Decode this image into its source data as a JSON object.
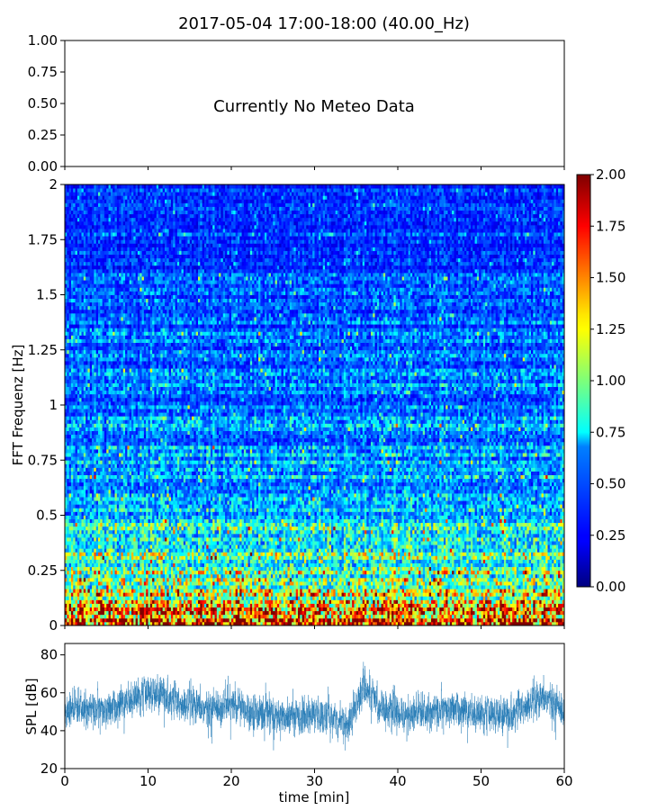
{
  "chart_data": [
    {
      "type": "line",
      "title": "2017-05-04 17:00-18:00 (40.00_Hz)",
      "subplot": "meteo",
      "annotation": "Currently No Meteo Data",
      "ylim": [
        0,
        1
      ],
      "yticks": [
        "0.00",
        "0.25",
        "0.50",
        "0.75",
        "1.00"
      ],
      "series": []
    },
    {
      "type": "heatmap",
      "subplot": "spectrogram",
      "ylabel": "FFT Frequenz [Hz]",
      "ylim": [
        0,
        2
      ],
      "yticks": [
        "0",
        "0.25",
        "0.5",
        "0.75",
        "1",
        "1.25",
        "1.5",
        "1.75",
        "2"
      ],
      "xlim": [
        0,
        60
      ],
      "colormap": "jet",
      "colorbar": {
        "range": [
          0,
          2
        ],
        "ticks": [
          "0.00",
          "0.25",
          "0.50",
          "0.75",
          "1.00",
          "1.25",
          "1.50",
          "1.75",
          "2.00"
        ]
      },
      "time_bins": 240,
      "freq_bins": 120,
      "value_profile": {
        "freq_hz": [
          0,
          0.05,
          0.1,
          0.2,
          0.3,
          0.4,
          0.5,
          0.6,
          0.75,
          1.0,
          1.25,
          1.5,
          1.75,
          2.0
        ],
        "mean_value": [
          1.5,
          1.45,
          1.25,
          1.0,
          0.85,
          0.75,
          0.68,
          0.62,
          0.55,
          0.5,
          0.45,
          0.4,
          0.37,
          0.35
        ]
      }
    },
    {
      "type": "line",
      "subplot": "spl",
      "ylabel": "SPL [dB]",
      "xlabel": "time [min]",
      "xlim": [
        0,
        60
      ],
      "ylim": [
        20,
        86
      ],
      "yticks": [
        "20",
        "40",
        "60",
        "80"
      ],
      "xticks": [
        "0",
        "10",
        "20",
        "30",
        "40",
        "50",
        "60"
      ],
      "color": "#1f77b4",
      "envelope": {
        "t_min": [
          0,
          2,
          5,
          8,
          10,
          12,
          14,
          17,
          20,
          23,
          26,
          29,
          32,
          34,
          36,
          38,
          41,
          44,
          47,
          50,
          53,
          56,
          58,
          60
        ],
        "mean_db": [
          50,
          52,
          50,
          57,
          60,
          60,
          53,
          51,
          54,
          50,
          47,
          48,
          47,
          43,
          63,
          52,
          48,
          50,
          51,
          49,
          49,
          53,
          57,
          50
        ]
      }
    }
  ]
}
